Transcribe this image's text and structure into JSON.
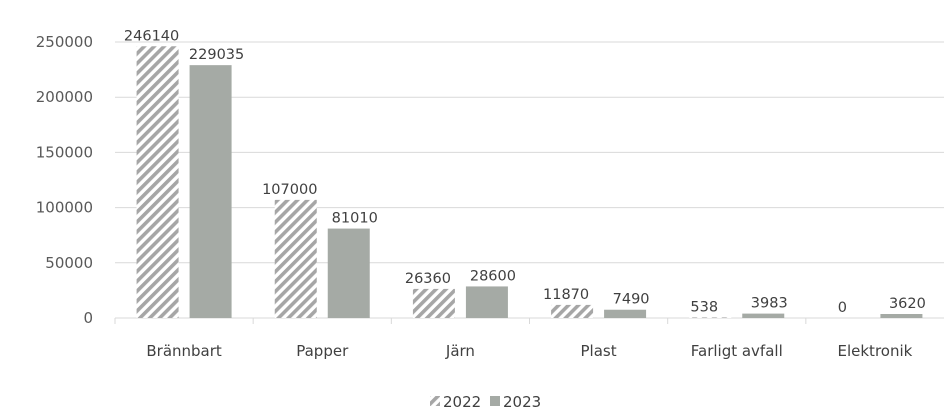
{
  "chart_data": {
    "type": "bar",
    "categories": [
      "Brännbart",
      "Papper",
      "Järn",
      "Plast",
      "Farligt avfall",
      "Elektronik"
    ],
    "series": [
      {
        "name": "2022",
        "values": [
          246140,
          107000,
          26360,
          11870,
          538,
          0
        ],
        "color": "#a6a6a6",
        "pattern": "diagonal-hatch"
      },
      {
        "name": "2023",
        "values": [
          229035,
          81010,
          28600,
          7490,
          3983,
          3620
        ],
        "color": "#a5aaa5",
        "pattern": "solid"
      }
    ],
    "ylim": [
      0,
      250000
    ],
    "yticks": [
      0,
      50000,
      100000,
      150000,
      200000,
      250000
    ],
    "grid": true,
    "legend": "bottom-center",
    "data_labels": true
  }
}
